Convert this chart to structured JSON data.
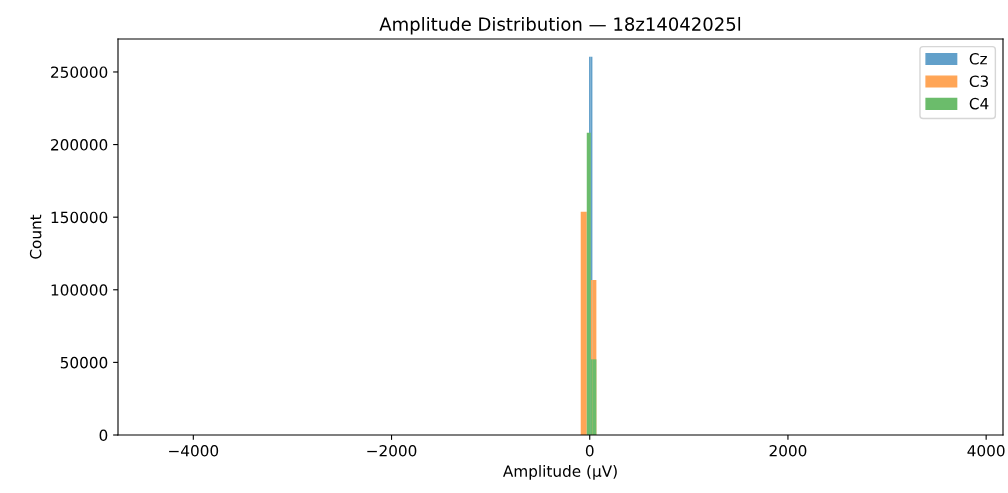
{
  "chart_data": {
    "type": "histogram",
    "title": "Amplitude Distribution — 18z14042025l",
    "xlabel": "Amplitude (µV)",
    "ylabel": "Count",
    "bins": [
      -91,
      -30,
      -7,
      10,
      27,
      67
    ],
    "series": [
      {
        "name": "Cz",
        "color": "#62a0ca",
        "values": [
          null,
          null,
          260500,
          260500,
          null
        ]
      },
      {
        "name": "C3",
        "color": "#ffa556",
        "values": [
          153800,
          null,
          null,
          106700,
          106700
        ]
      },
      {
        "name": "C4",
        "color": "#6bbc6b",
        "values": [
          null,
          208200,
          208200,
          52100,
          52100
        ]
      }
    ],
    "xlim": [
      -4760,
      4170
    ],
    "xticks": [
      {
        "value": -4000,
        "label": "−4000"
      },
      {
        "value": -2000,
        "label": "−2000"
      },
      0,
      2000,
      4000
    ],
    "ylim": [
      0,
      272700
    ],
    "yticks": [
      0,
      50000,
      100000,
      150000,
      200000,
      250000
    ],
    "legend": "top right",
    "grid": false
  }
}
